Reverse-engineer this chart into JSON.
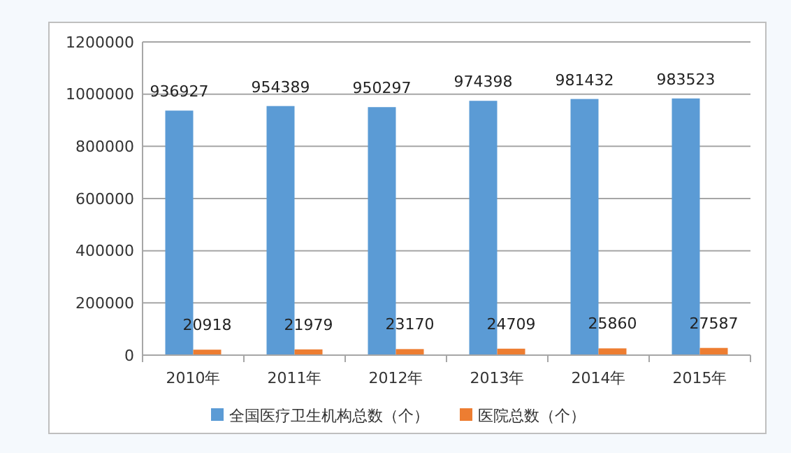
{
  "chart_data": {
    "type": "bar",
    "categories": [
      "2010年",
      "2011年",
      "2012年",
      "2013年",
      "2014年",
      "2015年"
    ],
    "series": [
      {
        "name": "全国医疗卫生机构总数（个）",
        "color": "#5b9bd5",
        "values": [
          936927,
          954389,
          950297,
          974398,
          981432,
          983523
        ]
      },
      {
        "name": "医院总数（个）",
        "color": "#ed7d31",
        "values": [
          20918,
          21979,
          23170,
          24709,
          25860,
          27587
        ]
      }
    ],
    "ylim": [
      0,
      1200000
    ],
    "yticks": [
      0,
      200000,
      400000,
      600000,
      800000,
      1000000,
      1200000
    ],
    "grid": "y",
    "legend": "bottom",
    "data_labels": true
  }
}
